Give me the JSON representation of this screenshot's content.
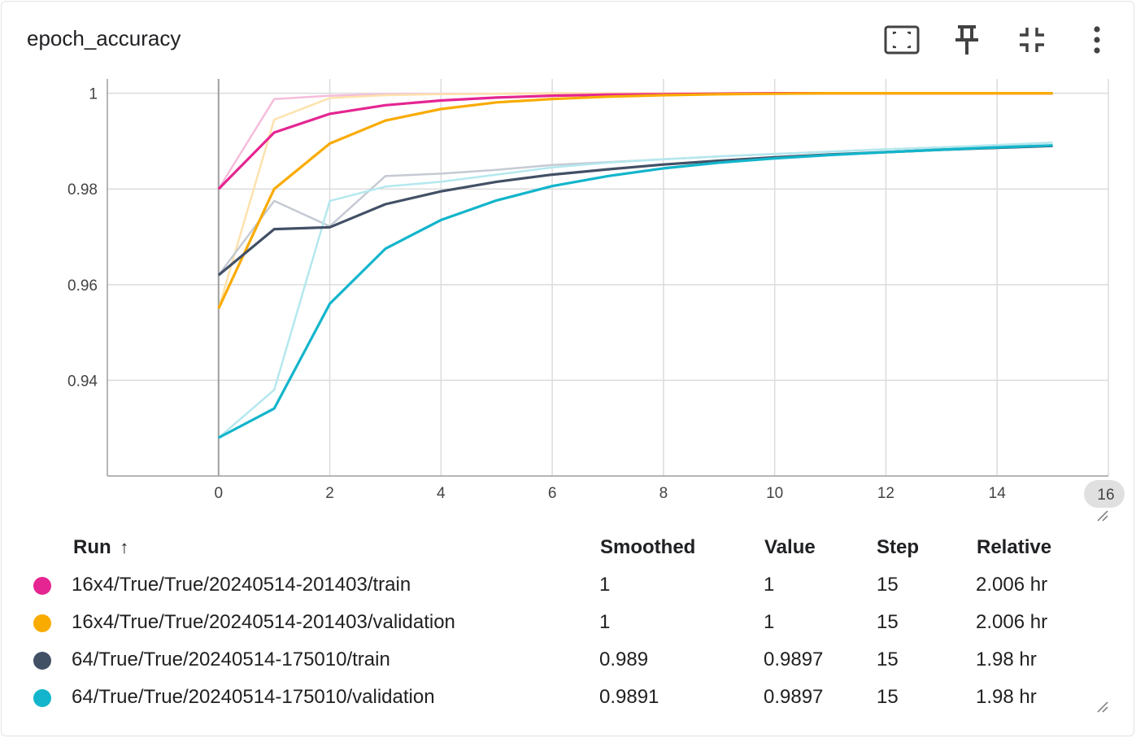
{
  "card": {
    "title": "epoch_accuracy"
  },
  "toolbar": {
    "icons": [
      "fit-domain-icon",
      "pin-icon",
      "collapse-icon",
      "more-vert-icon"
    ]
  },
  "chart_data": {
    "type": "line",
    "title": "epoch_accuracy",
    "xlabel": "",
    "ylabel": "",
    "xlim": [
      -2,
      16
    ],
    "ylim": [
      0.92,
      1.003
    ],
    "x_ticks": [
      "0",
      "2",
      "4",
      "6",
      "8",
      "10",
      "12",
      "14"
    ],
    "x_tick_values": [
      0,
      2,
      4,
      6,
      8,
      10,
      12,
      14
    ],
    "x_max_badge": "16",
    "y_ticks": [
      "0.94",
      "0.96",
      "0.98",
      "1"
    ],
    "y_tick_values": [
      0.94,
      0.96,
      0.98,
      1.0
    ],
    "grid": true,
    "x": [
      0,
      1,
      2,
      3,
      4,
      5,
      6,
      7,
      8,
      9,
      10,
      11,
      12,
      13,
      14,
      15
    ],
    "series": [
      {
        "name": "16x4/True/True/20240514-201403/train",
        "color": "#e52592",
        "raw": [
          0.98,
          0.9988,
          0.9995,
          0.9998,
          0.9999,
          0.9999,
          1.0,
          1.0,
          1.0,
          1.0,
          1.0,
          1.0,
          1.0,
          1.0,
          1.0,
          1.0
        ],
        "smoothed": [
          0.98,
          0.9918,
          0.9957,
          0.9975,
          0.9985,
          0.9991,
          0.9995,
          0.9997,
          0.9998,
          0.9999,
          1.0,
          1.0,
          1.0,
          1.0,
          1.0,
          1.0
        ]
      },
      {
        "name": "16x4/True/True/20240514-201403/validation",
        "color": "#f9ab00",
        "raw": [
          0.955,
          0.9945,
          0.999,
          0.9996,
          0.9998,
          0.9999,
          1.0,
          1.0,
          1.0,
          1.0,
          1.0,
          1.0,
          1.0,
          1.0,
          1.0,
          1.0
        ],
        "smoothed": [
          0.955,
          0.98,
          0.9895,
          0.9943,
          0.9967,
          0.9981,
          0.9988,
          0.9993,
          0.9996,
          0.9998,
          0.9999,
          1.0,
          1.0,
          1.0,
          1.0,
          1.0
        ]
      },
      {
        "name": "64/True/True/20240514-175010/train",
        "color": "#425066",
        "raw": [
          0.962,
          0.9775,
          0.9722,
          0.9827,
          0.9832,
          0.984,
          0.985,
          0.9856,
          0.9862,
          0.9868,
          0.9873,
          0.9878,
          0.9883,
          0.9887,
          0.9891,
          0.9897
        ],
        "smoothed": [
          0.962,
          0.9716,
          0.972,
          0.9768,
          0.9795,
          0.9815,
          0.983,
          0.9841,
          0.9851,
          0.9859,
          0.9866,
          0.9872,
          0.9877,
          0.9882,
          0.9886,
          0.989
        ]
      },
      {
        "name": "64/True/True/20240514-175010/validation",
        "color": "#12b5cb",
        "raw": [
          0.928,
          0.938,
          0.9775,
          0.9805,
          0.9815,
          0.983,
          0.9845,
          0.9855,
          0.9862,
          0.9868,
          0.9873,
          0.9878,
          0.9883,
          0.9887,
          0.9892,
          0.9897
        ],
        "smoothed": [
          0.928,
          0.9341,
          0.956,
          0.9675,
          0.9735,
          0.9776,
          0.9806,
          0.9827,
          0.9843,
          0.9855,
          0.9864,
          0.9871,
          0.9877,
          0.9882,
          0.9887,
          0.9891
        ]
      }
    ]
  },
  "legend": {
    "headers": {
      "run": "Run",
      "sort_icon": "↑",
      "smoothed": "Smoothed",
      "value": "Value",
      "step": "Step",
      "relative": "Relative"
    },
    "rows": [
      {
        "color": "#e52592",
        "run": "16x4/True/True/20240514-201403/train",
        "smoothed": "1",
        "value": "1",
        "step": "15",
        "relative": "2.006 hr"
      },
      {
        "color": "#f9ab00",
        "run": "16x4/True/True/20240514-201403/validation",
        "smoothed": "1",
        "value": "1",
        "step": "15",
        "relative": "2.006 hr"
      },
      {
        "color": "#425066",
        "run": "64/True/True/20240514-175010/train",
        "smoothed": "0.989",
        "value": "0.9897",
        "step": "15",
        "relative": "1.98 hr"
      },
      {
        "color": "#12b5cb",
        "run": "64/True/True/20240514-175010/validation",
        "smoothed": "0.9891",
        "value": "0.9897",
        "step": "15",
        "relative": "1.98 hr"
      }
    ]
  }
}
